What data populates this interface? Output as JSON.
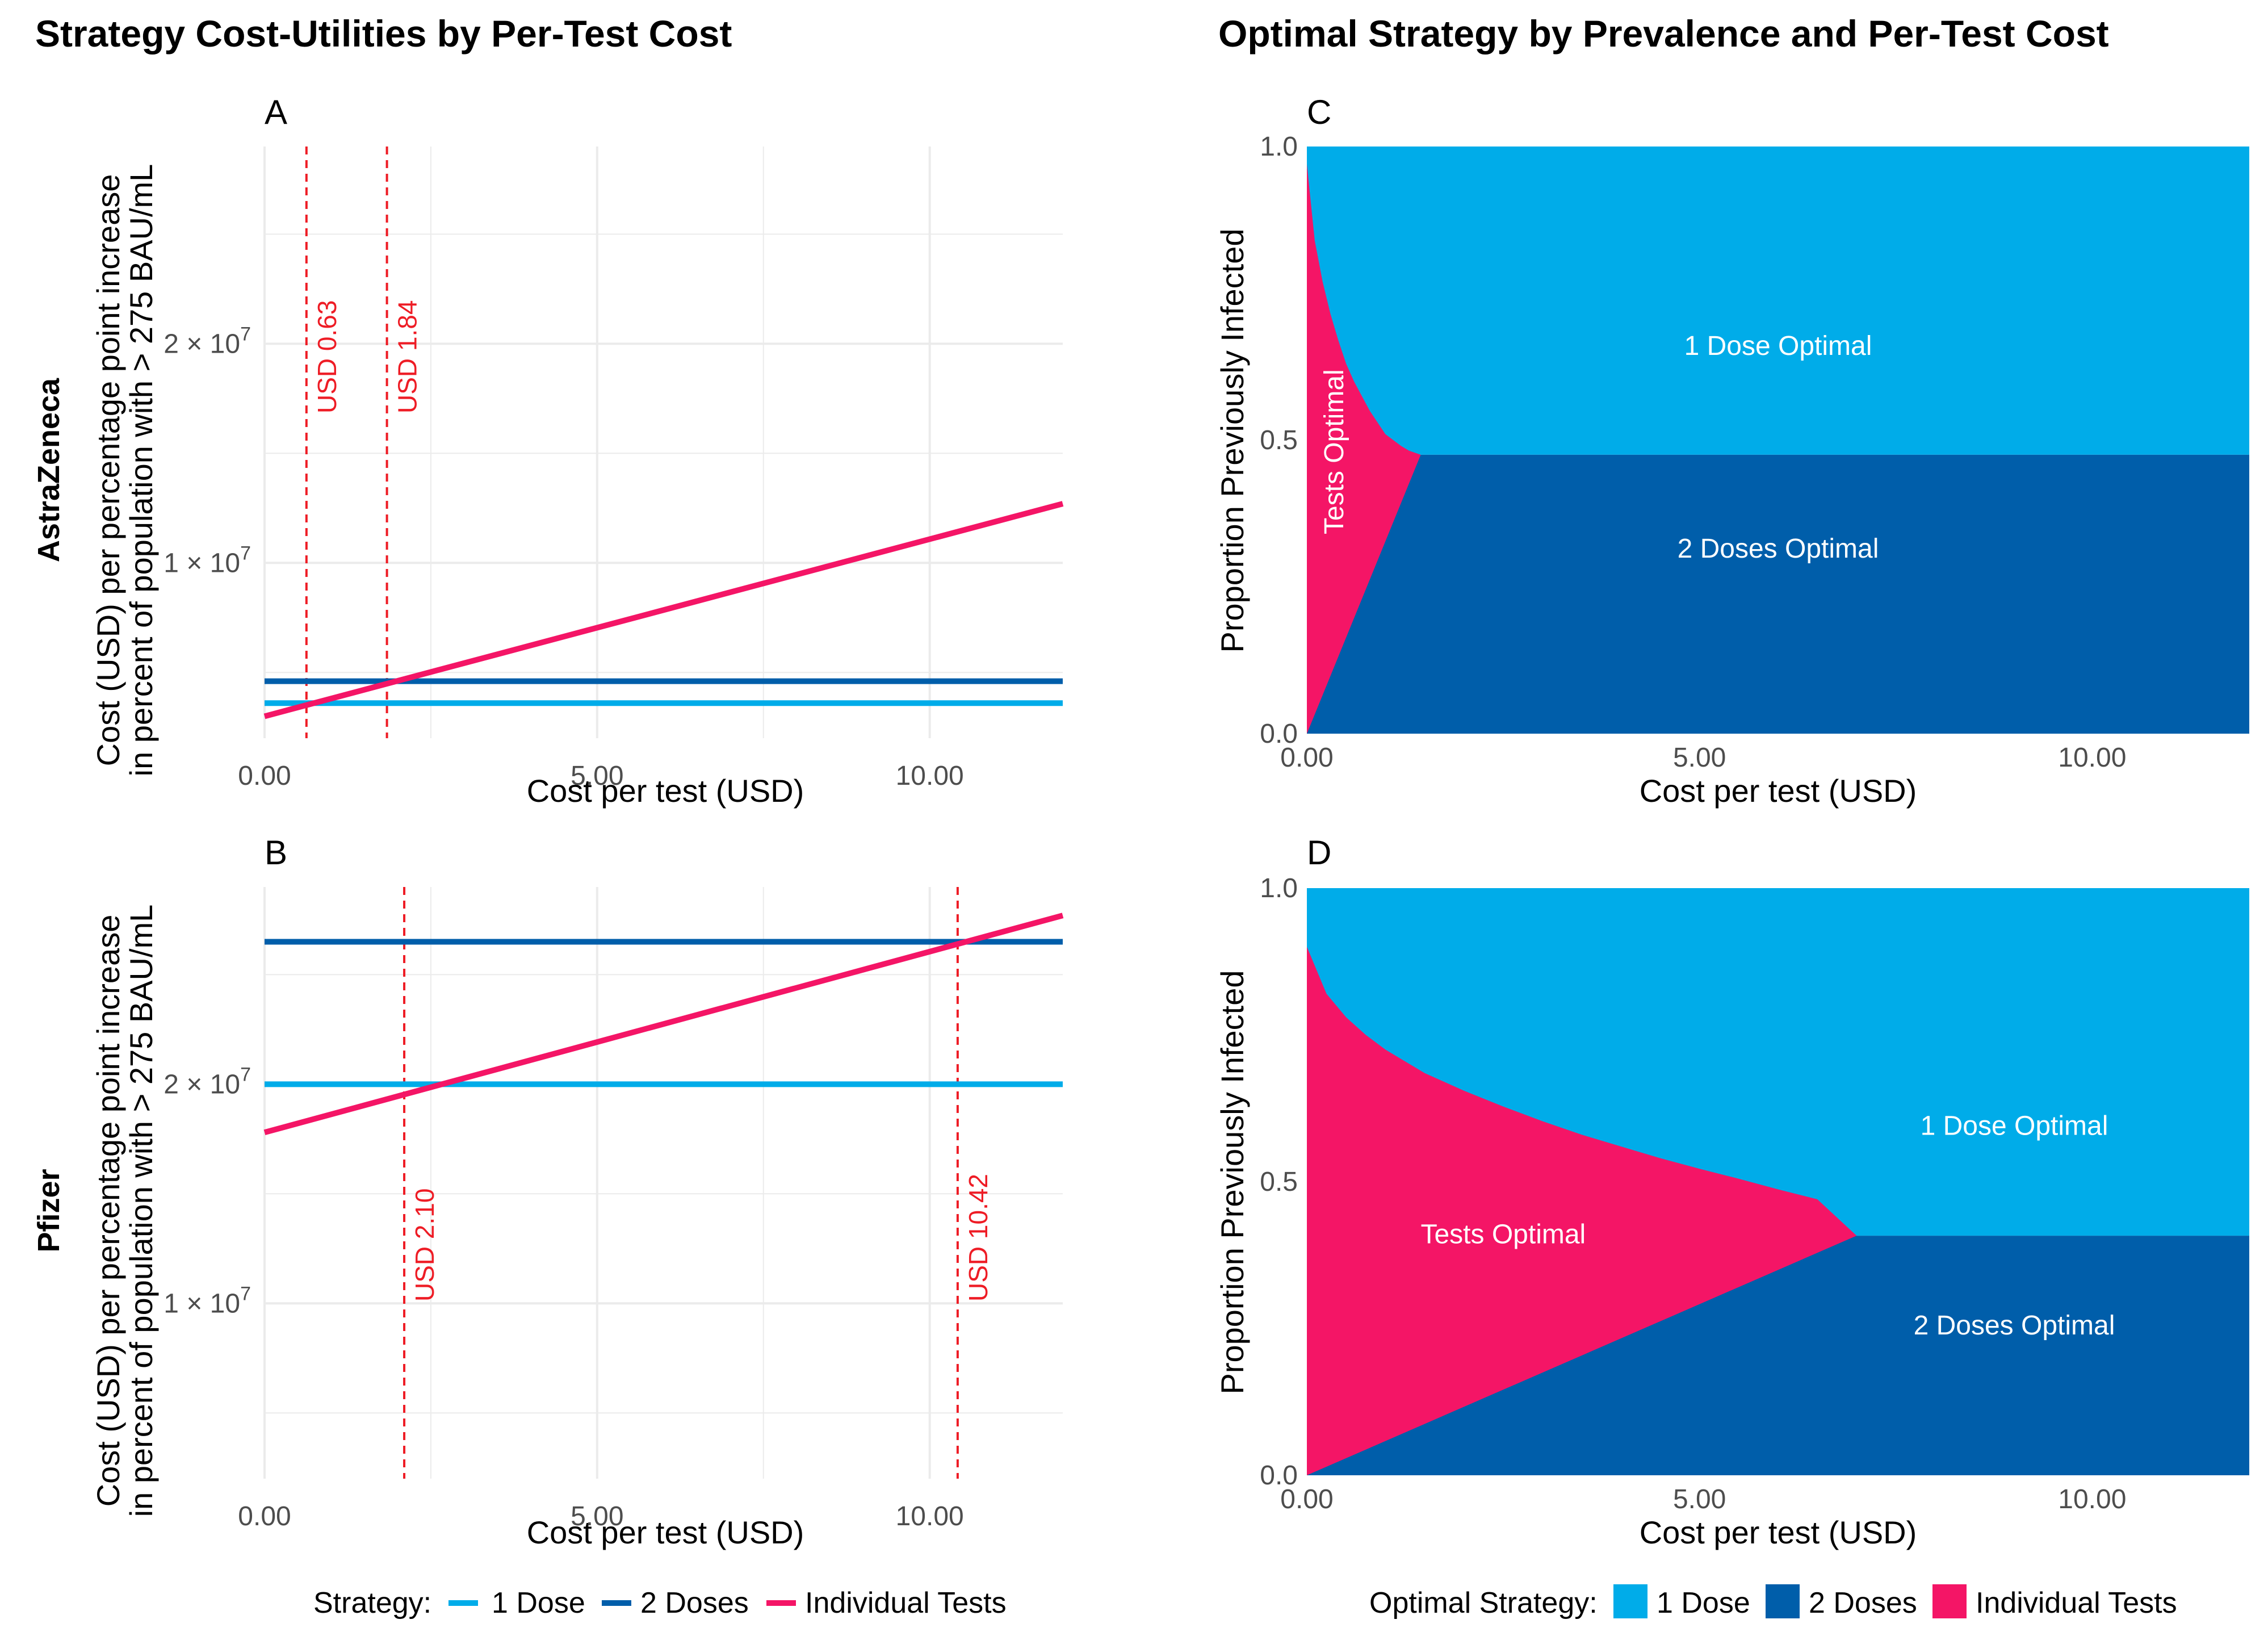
{
  "headers": {
    "left": "Strategy Cost-Utilities by Per-Test Cost",
    "right": "Optimal Strategy by Prevalence and Per-Test Cost"
  },
  "colors": {
    "one_dose": "#00ace9",
    "two_doses": "#005eaa",
    "individual_tests": "#f41566",
    "threshold": "#ee1c25",
    "grid": "#ebebeb"
  },
  "legend_left": {
    "title": "Strategy:",
    "items": [
      "1 Dose",
      "2 Doses",
      "Individual Tests"
    ]
  },
  "legend_right": {
    "title": "Optimal Strategy:",
    "items": [
      "1 Dose",
      "2 Doses",
      "Individual Tests"
    ]
  },
  "chart_data": [
    {
      "panel": "A",
      "row_label": "AstraZeneca",
      "type": "line",
      "title": "",
      "xlabel": "Cost per test (USD)",
      "ylabel_line1": "Cost (USD) per percentage point increase",
      "ylabel_line2": "in percent of population with > 275 BAU/mL",
      "xlim": [
        0,
        12
      ],
      "ylim": [
        2000000,
        29000000
      ],
      "xticks": [
        0,
        5,
        10
      ],
      "xtick_labels": [
        "0.00",
        "5.00",
        "10.00"
      ],
      "yticks": [
        10000000,
        20000000
      ],
      "ytick_labels": [
        "1 × 10",
        "2 × 10"
      ],
      "ytick_exponent": "7",
      "series": [
        {
          "name": "1 Dose",
          "x": [
            0,
            12
          ],
          "y": [
            3600000,
            3600000
          ]
        },
        {
          "name": "2 Doses",
          "x": [
            0,
            12
          ],
          "y": [
            4600000,
            4600000
          ]
        },
        {
          "name": "Individual Tests",
          "x": [
            0,
            12
          ],
          "y": [
            3000000,
            12700000
          ]
        }
      ],
      "thresholds": [
        {
          "x": 0.63,
          "label": "USD 0.63"
        },
        {
          "x": 1.84,
          "label": "USD 1.84"
        }
      ]
    },
    {
      "panel": "B",
      "row_label": "Pfizer",
      "type": "line",
      "title": "",
      "xlabel": "Cost per test (USD)",
      "ylabel_line1": "Cost (USD) per percentage point increase",
      "ylabel_line2": "in percent of population with > 275 BAU/mL",
      "xlim": [
        0,
        12
      ],
      "ylim": [
        2000000,
        29000000
      ],
      "xticks": [
        0,
        5,
        10
      ],
      "xtick_labels": [
        "0.00",
        "5.00",
        "10.00"
      ],
      "yticks": [
        10000000,
        20000000
      ],
      "ytick_labels": [
        "1 × 10",
        "2 × 10"
      ],
      "ytick_exponent": "7",
      "series": [
        {
          "name": "1 Dose",
          "x": [
            0,
            12
          ],
          "y": [
            20000000,
            20000000
          ]
        },
        {
          "name": "2 Doses",
          "x": [
            0,
            12
          ],
          "y": [
            26500000,
            26500000
          ]
        },
        {
          "name": "Individual Tests",
          "x": [
            0,
            12
          ],
          "y": [
            17800000,
            27700000
          ]
        }
      ],
      "thresholds": [
        {
          "x": 2.1,
          "label": "USD 2.10"
        },
        {
          "x": 10.42,
          "label": "USD 10.42"
        }
      ]
    },
    {
      "panel": "C",
      "type": "area",
      "xlabel": "Cost per test (USD)",
      "ylabel": "Proportion Previously Infected",
      "xlim": [
        0,
        12
      ],
      "ylim": [
        0,
        1
      ],
      "xticks": [
        0,
        5,
        10
      ],
      "xtick_labels": [
        "0.00",
        "5.00",
        "10.00"
      ],
      "yticks": [
        0,
        0.5,
        1
      ],
      "ytick_labels": [
        "0.0",
        "0.5",
        "1.0"
      ],
      "tests_optimal_upper_boundary": {
        "x": [
          0,
          0.1,
          0.2,
          0.3,
          0.4,
          0.5,
          0.6,
          0.7,
          0.8,
          0.9,
          1.0,
          1.1,
          1.2,
          1.3,
          1.45
        ],
        "y": [
          0.97,
          0.84,
          0.77,
          0.715,
          0.67,
          0.63,
          0.6,
          0.575,
          0.55,
          0.53,
          0.51,
          0.5,
          0.49,
          0.482,
          0.475
        ]
      },
      "tests_optimal_lower_boundary": {
        "x": [
          0,
          1.45
        ],
        "y": [
          0,
          0.475
        ]
      },
      "one_two_dose_boundary": 0.475,
      "region_labels": {
        "one_dose": "1 Dose Optimal",
        "two_doses": "2 Doses Optimal",
        "tests": "Tests Optimal"
      }
    },
    {
      "panel": "D",
      "type": "area",
      "xlabel": "Cost per test (USD)",
      "ylabel": "Proportion Previously Infected",
      "xlim": [
        0,
        12
      ],
      "ylim": [
        0,
        1
      ],
      "xticks": [
        0,
        5,
        10
      ],
      "xtick_labels": [
        "0.00",
        "5.00",
        "10.00"
      ],
      "yticks": [
        0,
        0.5,
        1
      ],
      "ytick_labels": [
        "0.0",
        "0.5",
        "1.0"
      ],
      "tests_optimal_upper_boundary": {
        "x": [
          0,
          0.25,
          0.5,
          0.75,
          1.0,
          1.5,
          2.0,
          2.5,
          3.0,
          3.5,
          4.0,
          4.5,
          5.0,
          5.5,
          6.0,
          6.5,
          7.0
        ],
        "y": [
          0.9,
          0.82,
          0.78,
          0.75,
          0.725,
          0.685,
          0.655,
          0.628,
          0.603,
          0.58,
          0.56,
          0.54,
          0.522,
          0.505,
          0.487,
          0.47,
          0.408
        ]
      },
      "tests_optimal_lower_boundary": {
        "x": [
          0,
          7.0
        ],
        "y": [
          0,
          0.408
        ]
      },
      "one_two_dose_boundary": 0.408,
      "region_labels": {
        "one_dose": "1 Dose Optimal",
        "two_doses": "2 Doses Optimal",
        "tests": "Tests Optimal"
      }
    }
  ]
}
